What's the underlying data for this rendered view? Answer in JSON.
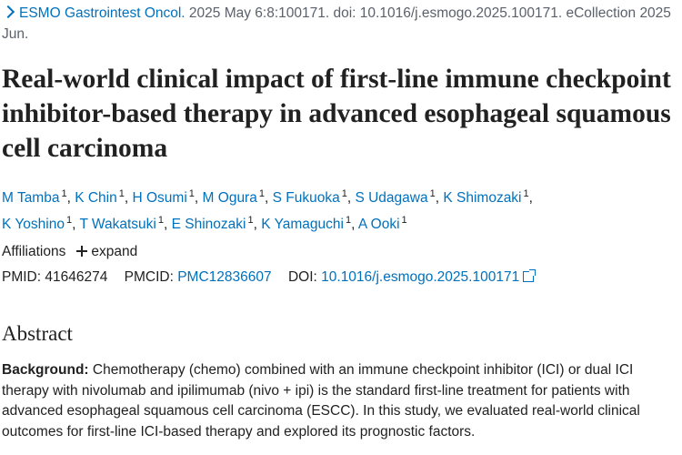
{
  "citation": {
    "journal": "ESMO Gastrointest Oncol.",
    "rest": " 2025 May 6:8:100171. doi: 10.1016/j.esmogo.2025.100171. eCollection 2025 Jun."
  },
  "title": "Real-world clinical impact of first-line immune checkpoint inhibitor-based therapy in advanced esophageal squamous cell carcinoma",
  "authors": [
    {
      "name": "M Tamba",
      "sup": "1"
    },
    {
      "name": "K Chin",
      "sup": "1"
    },
    {
      "name": "H Osumi",
      "sup": "1"
    },
    {
      "name": "M Ogura",
      "sup": "1"
    },
    {
      "name": "S Fukuoka",
      "sup": "1"
    },
    {
      "name": "S Udagawa",
      "sup": "1"
    },
    {
      "name": "K Shimozaki",
      "sup": "1"
    },
    {
      "name": "K Yoshino",
      "sup": "1"
    },
    {
      "name": "T Wakatsuki",
      "sup": "1"
    },
    {
      "name": "E Shinozaki",
      "sup": "1"
    },
    {
      "name": "K Yamaguchi",
      "sup": "1"
    },
    {
      "name": "A Ooki",
      "sup": "1"
    }
  ],
  "affiliations": {
    "label": "Affiliations",
    "expand": "expand"
  },
  "ids": {
    "pmid_label": "PMID:",
    "pmid": "41646274",
    "pmcid_label": "PMCID:",
    "pmcid": "PMC12836607",
    "doi_label": "DOI:",
    "doi": "10.1016/j.esmogo.2025.100171"
  },
  "abstract": {
    "heading": "Abstract",
    "background_label": "Background:",
    "background_text": " Chemotherapy (chemo) combined with an immune checkpoint inhibitor (ICI) or dual ICI therapy with nivolumab and ipilimumab (nivo + ipi) is the standard first-line treatment for patients with advanced esophageal squamous cell carcinoma (ESCC). In this study, we evaluated real-world clinical outcomes for first-line ICI-based therapy and explored its prognostic factors."
  }
}
